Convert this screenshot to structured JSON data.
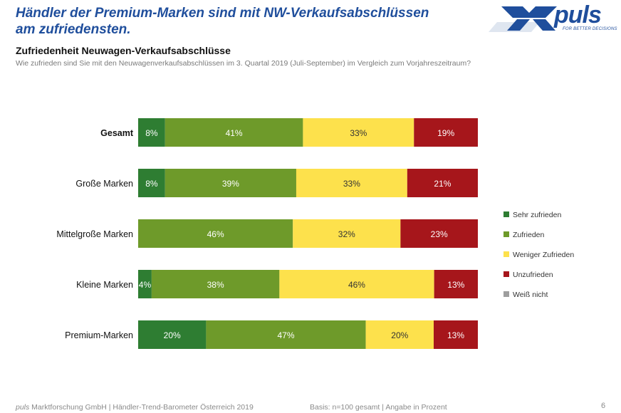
{
  "header": {
    "title": "Händler der Premium-Marken sind mit NW-Verkaufsabschlüssen am zufriedensten.",
    "logo_text": "puls",
    "logo_tagline": "FOR BETTER DECISIONS"
  },
  "chart_title": "Zufriedenheit Neuwagen-Verkaufsabschlüsse",
  "question": "Wie zufrieden sind Sie mit den Neuwagenverkaufsabschlüssen im 3. Quartal 2019 (Juli-September) im Vergleich zum Vorjahreszeitraum?",
  "footer": {
    "brand": "puls",
    "source": " Marktforschung GmbH | Händler-Trend-Barometer Österreich 2019",
    "basis": "Basis: n=100 gesamt | Angabe in Prozent",
    "page": "6"
  },
  "colors": {
    "title": "#1f4e9c",
    "sehr_zufrieden": "#2e7d32",
    "zufrieden": "#6e9a2a",
    "weniger_zufrieden": "#fde14c",
    "unzufrieden": "#a6161b",
    "weiss_nicht": "#9e9e9e"
  },
  "chart_data": {
    "type": "bar",
    "orientation": "horizontal",
    "stacked": true,
    "categories": [
      "Gesamt",
      "Große Marken",
      "Mittelgroße Marken",
      "Kleine Marken",
      "Premium-Marken"
    ],
    "bold_categories": [
      "Gesamt"
    ],
    "series": [
      {
        "name": "Sehr zufrieden",
        "color": "#2e7d32",
        "values": [
          8,
          8,
          0,
          4,
          20
        ],
        "labels": [
          "8%",
          "8%",
          "",
          "4%",
          "20%"
        ]
      },
      {
        "name": "Zufrieden",
        "color": "#6e9a2a",
        "values": [
          41,
          39,
          46,
          38,
          47
        ],
        "labels": [
          "41%",
          "39%",
          "46%",
          "38%",
          "47%"
        ]
      },
      {
        "name": "Weniger Zufrieden",
        "color": "#fde14c",
        "values": [
          33,
          33,
          32,
          46,
          20
        ],
        "labels": [
          "33%",
          "33%",
          "32%",
          "46%",
          "20%"
        ]
      },
      {
        "name": "Unzufrieden",
        "color": "#a6161b",
        "values": [
          19,
          21,
          23,
          13,
          13
        ],
        "labels": [
          "19%",
          "21%",
          "23%",
          "13%",
          "13%"
        ]
      },
      {
        "name": "Weiß nicht",
        "color": "#9e9e9e",
        "values": [
          0,
          0,
          0,
          0,
          0
        ],
        "labels": [
          "",
          "",
          "",
          "",
          ""
        ]
      }
    ],
    "xlim": [
      0,
      100
    ],
    "legend_position": "right",
    "grid": false
  }
}
